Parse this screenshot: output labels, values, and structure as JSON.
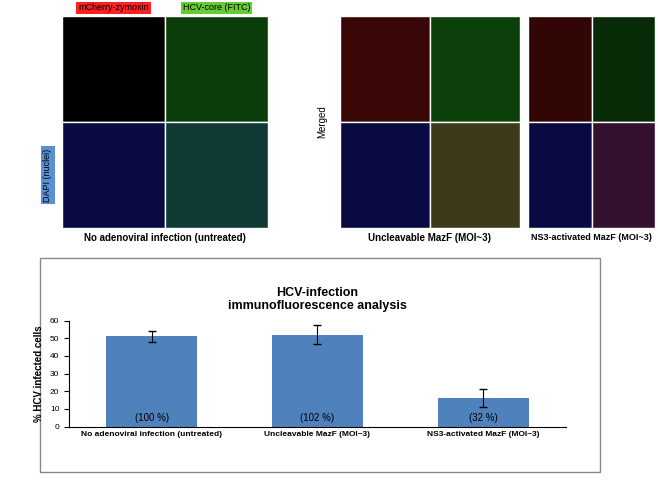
{
  "panels": {
    "channel_labels": [
      "mCherry-zymoxin",
      "HCV-core (FITC)"
    ],
    "row_label": "DAPI (nuclei)",
    "merged_label": "Merged",
    "conditions": [
      "No adenoviral infection (untreated)",
      "Uncleavable MazF (MOI~3)",
      "NS3-activated MazF (MOI~3)"
    ]
  },
  "chart_data": {
    "type": "bar",
    "title": "HCV-infection\nimmunofluorescence analysis",
    "ylabel": "% HCV infected cells",
    "categories": [
      "No adenoviral infection (untreated)",
      "Uncleavable MazF (MOI~3)",
      "NS3-activated MazF (MOI~3)"
    ],
    "values": [
      51,
      52,
      16
    ],
    "errors": [
      3.3,
      5.3,
      5.0
    ],
    "annotations": [
      "(100 %)",
      "(102 %)",
      "(32 %)"
    ],
    "color": "#4f81bd",
    "ylim": [
      0,
      60
    ],
    "yticks": [
      0,
      10,
      20,
      30,
      40,
      50,
      60
    ],
    "grid": false
  }
}
